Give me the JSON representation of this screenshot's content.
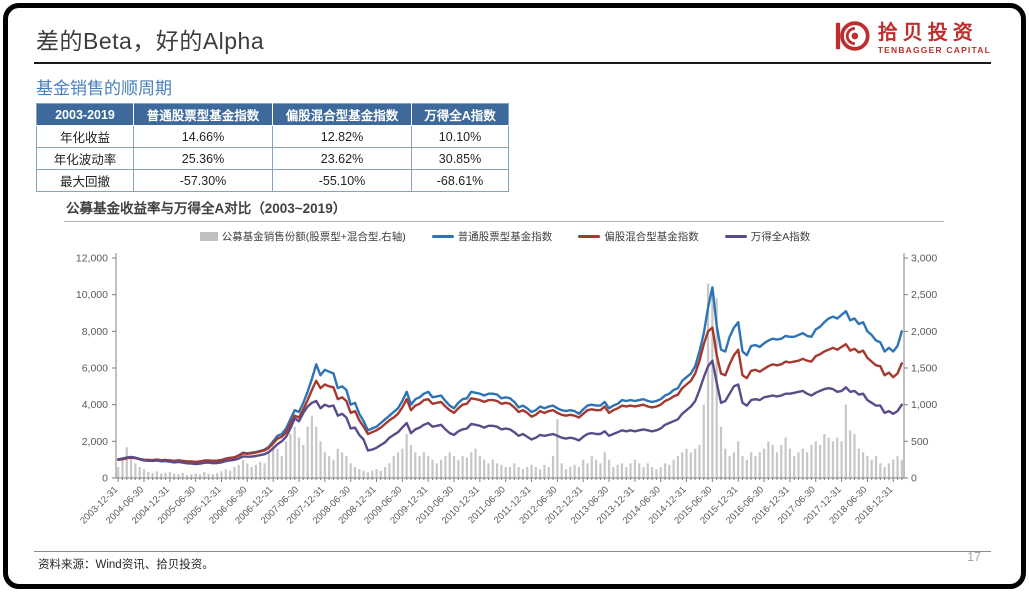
{
  "slide": {
    "title": "差的Beta，好的Alpha",
    "section_heading": "基金销售的顺周期",
    "source_note": "资料来源：Wind资讯、拾贝投资。",
    "page_number": "17"
  },
  "logo": {
    "cn": "拾贝投资",
    "en": "TENBAGGER CAPITAL",
    "color": "#be2e2e"
  },
  "table": {
    "header_bg": "#3e6a9b",
    "headers": [
      "2003-2019",
      "普通股票型基金指数",
      "偏股混合型基金指数",
      "万得全A指数"
    ],
    "rows": [
      [
        "年化收益",
        "14.66%",
        "12.82%",
        "10.10%"
      ],
      [
        "年化波动率",
        "25.36%",
        "23.62%",
        "30.85%"
      ],
      [
        "最大回撤",
        "-57.30%",
        "-55.10%",
        "-68.61%"
      ]
    ]
  },
  "chart_data": {
    "type": "bar+line combo, dual axis",
    "title": "公募基金收益率与万得全A对比（2003~2019）",
    "legend_position": "top",
    "grid": false,
    "start_month": "2003-12",
    "months": 183,
    "x_tick_labels": [
      "2003-12-31",
      "2004-06-30",
      "2004-12-31",
      "2005-06-30",
      "2005-12-31",
      "2006-06-30",
      "2006-12-31",
      "2007-06-30",
      "2007-12-31",
      "2008-06-30",
      "2008-12-31",
      "2009-06-30",
      "2009-12-31",
      "2010-06-30",
      "2010-12-31",
      "2011-06-30",
      "2011-12-31",
      "2012-06-30",
      "2012-12-31",
      "2013-06-30",
      "2013-12-31",
      "2014-06-30",
      "2014-12-31",
      "2015-06-30",
      "2015-12-31",
      "2016-06-30",
      "2016-12-31",
      "2017-06-30",
      "2017-12-31",
      "2018-06-30",
      "2018-12-31"
    ],
    "left_axis": {
      "min": 0,
      "max": 12000,
      "step": 2000,
      "tick_labels": [
        "0",
        "2,000",
        "4,000",
        "6,000",
        "8,000",
        "10,000",
        "12,000"
      ]
    },
    "right_axis": {
      "min": 0,
      "max": 3000,
      "step": 500,
      "tick_labels": [
        "0",
        "500",
        "1,000",
        "1,500",
        "2,000",
        "2,500",
        "3,000"
      ]
    },
    "bars": {
      "name": "公募基金销售份额(股票型+混合型,右轴)",
      "axis": "right",
      "color": "#c7c7c7",
      "values": [
        150,
        250,
        420,
        300,
        200,
        150,
        120,
        80,
        70,
        90,
        60,
        70,
        80,
        60,
        50,
        70,
        40,
        50,
        60,
        50,
        80,
        60,
        50,
        70,
        90,
        120,
        100,
        150,
        180,
        250,
        200,
        150,
        180,
        220,
        200,
        350,
        450,
        400,
        300,
        500,
        600,
        700,
        550,
        450,
        700,
        840,
        700,
        500,
        350,
        300,
        250,
        400,
        350,
        300,
        200,
        150,
        120,
        100,
        80,
        100,
        120,
        100,
        150,
        200,
        300,
        350,
        400,
        600,
        450,
        350,
        300,
        350,
        300,
        250,
        200,
        250,
        300,
        350,
        300,
        250,
        300,
        280,
        350,
        400,
        300,
        250,
        200,
        250,
        200,
        180,
        150,
        150,
        200,
        150,
        120,
        150,
        180,
        150,
        120,
        180,
        150,
        300,
        800,
        200,
        120,
        150,
        180,
        150,
        250,
        200,
        300,
        250,
        200,
        350,
        250,
        150,
        180,
        200,
        150,
        200,
        250,
        200,
        150,
        200,
        150,
        120,
        150,
        200,
        180,
        250,
        300,
        350,
        400,
        350,
        400,
        450,
        1000,
        2650,
        2600,
        2450,
        700,
        400,
        300,
        350,
        500,
        300,
        250,
        350,
        300,
        350,
        400,
        500,
        450,
        350,
        450,
        550,
        400,
        300,
        350,
        400,
        350,
        450,
        500,
        450,
        600,
        550,
        500,
        550,
        500,
        1000,
        650,
        600,
        400,
        350,
        300,
        250,
        300,
        200,
        150,
        200,
        250,
        300,
        250
      ]
    },
    "series": [
      {
        "name": "普通股票型基金指数",
        "axis": "left",
        "color": "#2e74b5",
        "values": [
          1000,
          1030,
          1090,
          1130,
          1100,
          1040,
          990,
          980,
          970,
          1010,
          970,
          980,
          960,
          930,
          960,
          930,
          910,
          900,
          880,
          900,
          950,
          960,
          940,
          950,
          980,
          1060,
          1100,
          1130,
          1230,
          1380,
          1350,
          1380,
          1420,
          1480,
          1550,
          1700,
          2000,
          2300,
          2400,
          2700,
          3200,
          3700,
          3600,
          4100,
          4700,
          5400,
          6200,
          5600,
          5900,
          5800,
          5700,
          4900,
          5000,
          4800,
          4000,
          4100,
          3500,
          3100,
          2600,
          2700,
          2800,
          3000,
          3200,
          3400,
          3600,
          3800,
          4200,
          4700,
          4000,
          4300,
          4400,
          4600,
          4700,
          4400,
          4450,
          4500,
          4200,
          3950,
          3800,
          4100,
          4300,
          4350,
          4700,
          4650,
          4600,
          4500,
          4600,
          4600,
          4550,
          4350,
          4400,
          4350,
          4150,
          3850,
          3950,
          3800,
          3600,
          3700,
          3900,
          3800,
          3900,
          3950,
          3800,
          3700,
          3650,
          3700,
          3650,
          3500,
          3750,
          3950,
          4000,
          3950,
          3950,
          4150,
          3800,
          3950,
          4050,
          4250,
          4200,
          4250,
          4200,
          4250,
          4300,
          4200,
          4150,
          4200,
          4300,
          4500,
          4600,
          4800,
          4900,
          5300,
          5500,
          5700,
          6100,
          6900,
          7900,
          9300,
          10400,
          8300,
          7000,
          6900,
          7700,
          8200,
          8500,
          6900,
          6700,
          7200,
          7250,
          7150,
          7350,
          7500,
          7600,
          7550,
          7600,
          7750,
          7700,
          7700,
          7800,
          7900,
          7750,
          7700,
          8100,
          8250,
          8500,
          8700,
          8800,
          8700,
          8900,
          9100,
          8600,
          8700,
          8400,
          8500,
          8000,
          7800,
          7500,
          7400,
          6900,
          7100,
          6900,
          7200,
          8000
        ]
      },
      {
        "name": "偏股混合型基金指数",
        "axis": "left",
        "color": "#a5382f",
        "values": [
          1000,
          1020,
          1080,
          1110,
          1080,
          1030,
          990,
          980,
          970,
          1000,
          965,
          975,
          955,
          930,
          955,
          930,
          905,
          895,
          880,
          900,
          945,
          950,
          935,
          945,
          975,
          1050,
          1090,
          1120,
          1210,
          1350,
          1320,
          1350,
          1390,
          1450,
          1510,
          1650,
          1900,
          2150,
          2250,
          2500,
          2950,
          3400,
          3300,
          3750,
          4250,
          4800,
          5300,
          4900,
          5100,
          5000,
          4950,
          4300,
          4400,
          4200,
          3550,
          3650,
          3150,
          2800,
          2400,
          2500,
          2600,
          2750,
          2950,
          3150,
          3300,
          3500,
          3850,
          4300,
          3700,
          3950,
          4050,
          4250,
          4300,
          4050,
          4100,
          4150,
          3900,
          3700,
          3550,
          3800,
          4000,
          4050,
          4350,
          4300,
          4250,
          4150,
          4250,
          4250,
          4200,
          4050,
          4100,
          4050,
          3850,
          3600,
          3700,
          3550,
          3350,
          3450,
          3650,
          3550,
          3650,
          3700,
          3550,
          3450,
          3400,
          3450,
          3400,
          3300,
          3500,
          3700,
          3750,
          3700,
          3700,
          3900,
          3550,
          3700,
          3800,
          3950,
          3900,
          3950,
          3900,
          3950,
          4000,
          3900,
          3850,
          3900,
          4000,
          4200,
          4300,
          4450,
          4550,
          4900,
          5100,
          5300,
          5700,
          6400,
          7300,
          8000,
          8200,
          6700,
          5700,
          5600,
          6200,
          6700,
          7000,
          5600,
          5450,
          5850,
          5900,
          5800,
          5950,
          6100,
          6200,
          6150,
          6200,
          6350,
          6300,
          6350,
          6400,
          6500,
          6400,
          6350,
          6650,
          6750,
          6900,
          7000,
          7100,
          7000,
          7150,
          7300,
          6950,
          7050,
          6850,
          6950,
          6550,
          6350,
          6150,
          6100,
          5600,
          5750,
          5500,
          5700,
          6250
        ]
      },
      {
        "name": "万得全A指数",
        "axis": "left",
        "color": "#5c4b8a",
        "values": [
          1020,
          1060,
          1120,
          1150,
          1110,
          1020,
          960,
          940,
          930,
          960,
          910,
          920,
          890,
          850,
          880,
          840,
          800,
          790,
          760,
          780,
          830,
          840,
          810,
          820,
          850,
          920,
          960,
          990,
          1060,
          1180,
          1160,
          1170,
          1200,
          1250,
          1300,
          1420,
          1620,
          1850,
          2000,
          2250,
          2700,
          3250,
          3100,
          3550,
          3900,
          4100,
          4200,
          3800,
          4000,
          3900,
          3950,
          3400,
          3500,
          3300,
          2700,
          2750,
          2350,
          2100,
          1500,
          1550,
          1650,
          1800,
          1950,
          2200,
          2350,
          2500,
          2750,
          3000,
          2450,
          2650,
          2750,
          2900,
          3000,
          2800,
          2850,
          2900,
          2650,
          2450,
          2350,
          2550,
          2650,
          2700,
          2950,
          2900,
          2850,
          2750,
          2850,
          2850,
          2800,
          2650,
          2700,
          2650,
          2500,
          2300,
          2400,
          2250,
          2100,
          2200,
          2350,
          2300,
          2350,
          2400,
          2300,
          2200,
          2150,
          2200,
          2150,
          2050,
          2250,
          2400,
          2450,
          2400,
          2400,
          2550,
          2300,
          2400,
          2500,
          2600,
          2550,
          2600,
          2550,
          2600,
          2650,
          2600,
          2550,
          2600,
          2700,
          2900,
          3000,
          3100,
          3200,
          3500,
          3700,
          3900,
          4200,
          4800,
          5500,
          6100,
          6400,
          5200,
          4100,
          4200,
          4600,
          5000,
          5100,
          4100,
          3950,
          4250,
          4300,
          4250,
          4400,
          4450,
          4500,
          4450,
          4500,
          4600,
          4600,
          4650,
          4700,
          4750,
          4600,
          4500,
          4650,
          4750,
          4850,
          4900,
          4850,
          4700,
          4750,
          4950,
          4700,
          4750,
          4550,
          4600,
          4250,
          4100,
          3950,
          3950,
          3550,
          3650,
          3500,
          3650,
          4000
        ]
      }
    ]
  }
}
